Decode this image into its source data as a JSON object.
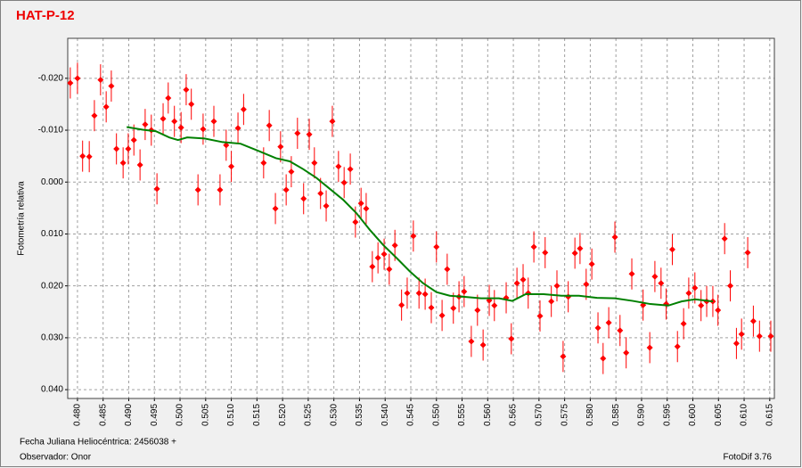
{
  "chart_data": {
    "type": "scatter",
    "title": "HAT-P-12",
    "ylabel": "Fotometría relativa",
    "xlabel": "Fecha Juliana Heliocéntrica: 2456038 +",
    "observer": "Observador: Onor",
    "software": "FotoDif 3.76",
    "xlim": [
      0.4781,
      0.6159
    ],
    "ylim": [
      0.0417,
      -0.0277
    ],
    "grid": true,
    "yticks": [
      {
        "value": -0.02,
        "label": "-0.020"
      },
      {
        "value": -0.01,
        "label": "-0.010"
      },
      {
        "value": 0,
        "label": "0.000"
      },
      {
        "value": 0.01,
        "label": "0.010"
      },
      {
        "value": 0.02,
        "label": "0.020"
      },
      {
        "value": 0.03,
        "label": "0.030"
      },
      {
        "value": 0.04,
        "label": "0.040"
      }
    ],
    "xticks": [
      {
        "value": 0.48,
        "label": "0.480"
      },
      {
        "value": 0.485,
        "label": "0.485"
      },
      {
        "value": 0.49,
        "label": "0.490"
      },
      {
        "value": 0.495,
        "label": "0.495"
      },
      {
        "value": 0.5,
        "label": "0.500"
      },
      {
        "value": 0.505,
        "label": "0.505"
      },
      {
        "value": 0.51,
        "label": "0.510"
      },
      {
        "value": 0.515,
        "label": "0.515"
      },
      {
        "value": 0.52,
        "label": "0.520"
      },
      {
        "value": 0.525,
        "label": "0.525"
      },
      {
        "value": 0.53,
        "label": "0.530"
      },
      {
        "value": 0.535,
        "label": "0.535"
      },
      {
        "value": 0.54,
        "label": "0.540"
      },
      {
        "value": 0.545,
        "label": "0.545"
      },
      {
        "value": 0.55,
        "label": "0.550"
      },
      {
        "value": 0.555,
        "label": "0.555"
      },
      {
        "value": 0.56,
        "label": "0.560"
      },
      {
        "value": 0.565,
        "label": "0.565"
      },
      {
        "value": 0.57,
        "label": "0.570"
      },
      {
        "value": 0.575,
        "label": "0.575"
      },
      {
        "value": 0.58,
        "label": "0.580"
      },
      {
        "value": 0.585,
        "label": "0.585"
      },
      {
        "value": 0.59,
        "label": "0.590"
      },
      {
        "value": 0.595,
        "label": "0.595"
      },
      {
        "value": 0.6,
        "label": "0.600"
      },
      {
        "value": 0.605,
        "label": "0.605"
      },
      {
        "value": 0.61,
        "label": "0.610"
      },
      {
        "value": 0.615,
        "label": "0.615"
      }
    ],
    "series": [
      {
        "type": "scatter",
        "color": "#ff0000",
        "yerr": 0.003,
        "x": [
          0.4786,
          0.48,
          0.481,
          0.4823,
          0.4833,
          0.4845,
          0.4856,
          0.4866,
          0.4876,
          0.4889,
          0.4899,
          0.491,
          0.4922,
          0.4932,
          0.4944,
          0.4955,
          0.4967,
          0.4977,
          0.4989,
          0.5002,
          0.5012,
          0.5022,
          0.5035,
          0.5045,
          0.5066,
          0.5078,
          0.509,
          0.51,
          0.5113,
          0.5124,
          0.5163,
          0.5174,
          0.5186,
          0.5196,
          0.5207,
          0.5217,
          0.5229,
          0.5241,
          0.5252,
          0.5262,
          0.5274,
          0.5285,
          0.5297,
          0.5309,
          0.532,
          0.5332,
          0.5342,
          0.5353,
          0.5363,
          0.5375,
          0.5386,
          0.5398,
          0.5408,
          0.5419,
          0.5432,
          0.5443,
          0.5455,
          0.5466,
          0.5478,
          0.549,
          0.55,
          0.5511,
          0.5521,
          0.5533,
          0.5544,
          0.5554,
          0.5568,
          0.558,
          0.5591,
          0.5603,
          0.5613,
          0.5636,
          0.5646,
          0.5657,
          0.5669,
          0.5679,
          0.569,
          0.5702,
          0.5712,
          0.5724,
          0.5735,
          0.5747,
          0.5757,
          0.577,
          0.578,
          0.5792,
          0.5803,
          0.5815,
          0.5825,
          0.5836,
          0.5848,
          0.5858,
          0.587,
          0.5881,
          0.5903,
          0.5916,
          0.5926,
          0.5938,
          0.5948,
          0.596,
          0.597,
          0.5982,
          0.5992,
          0.6004,
          0.6016,
          0.6027,
          0.6039,
          0.6049,
          0.6062,
          0.6073,
          0.6085,
          0.6095,
          0.6107,
          0.6118,
          0.613,
          0.6152
        ],
        "values": [
          -0.0191,
          -0.02,
          -0.005,
          -0.0049,
          -0.0128,
          -0.0197,
          -0.0145,
          -0.0185,
          -0.0064,
          -0.0037,
          -0.0064,
          -0.0081,
          -0.0033,
          -0.0111,
          -0.01,
          0.0013,
          -0.0122,
          -0.0162,
          -0.0117,
          -0.0105,
          -0.0178,
          -0.015,
          0.0015,
          -0.0102,
          -0.0117,
          0.0015,
          -0.0071,
          -0.003,
          -0.0104,
          -0.014,
          -0.0037,
          -0.0109,
          0.0051,
          -0.0068,
          0.0015,
          -0.002,
          -0.0094,
          0.0032,
          -0.0092,
          -0.0037,
          0.0022,
          0.0046,
          -0.0117,
          -0.003,
          0.0001,
          -0.0025,
          0.0077,
          0.0041,
          0.0051,
          0.0163,
          0.0146,
          0.0139,
          0.0168,
          0.0122,
          0.0237,
          0.0214,
          0.0104,
          0.0214,
          0.0216,
          0.0242,
          0.0125,
          0.0257,
          0.0168,
          0.0243,
          0.0221,
          0.0211,
          0.0307,
          0.0247,
          0.0314,
          0.0228,
          0.0238,
          0.0223,
          0.0302,
          0.0195,
          0.0188,
          0.0214,
          0.0125,
          0.0258,
          0.0136,
          0.023,
          0.02,
          0.0336,
          0.0221,
          0.0137,
          0.0128,
          0.0197,
          0.0158,
          0.0281,
          0.034,
          0.0271,
          0.0106,
          0.0286,
          0.0329,
          0.0177,
          0.0237,
          0.0319,
          0.0182,
          0.0195,
          0.0235,
          0.013,
          0.0317,
          0.0273,
          0.0214,
          0.0204,
          0.0238,
          0.023,
          0.023,
          0.0247,
          0.0109,
          0.02,
          0.0311,
          0.0293,
          0.0136,
          0.0268,
          0.0297,
          0.0297
        ]
      },
      {
        "type": "line",
        "color": "#008000",
        "x": [
          0.4896,
          0.4927,
          0.4953,
          0.4979,
          0.4996,
          0.5014,
          0.5048,
          0.5083,
          0.5118,
          0.5153,
          0.5187,
          0.5214,
          0.524,
          0.5266,
          0.5292,
          0.5318,
          0.5344,
          0.537,
          0.5396,
          0.5422,
          0.5448,
          0.5474,
          0.55,
          0.5526,
          0.5552,
          0.5587,
          0.5622,
          0.5648,
          0.5674,
          0.5709,
          0.5744,
          0.5778,
          0.5813,
          0.5848,
          0.5883,
          0.5917,
          0.5952,
          0.5978,
          0.6004,
          0.6039
        ],
        "values": [
          -0.0106,
          -0.0101,
          -0.0098,
          -0.0086,
          -0.0081,
          -0.0086,
          -0.0084,
          -0.0077,
          -0.0074,
          -0.006,
          -0.0046,
          -0.004,
          -0.0025,
          -0.0008,
          0.0013,
          0.0034,
          0.006,
          0.0092,
          0.0121,
          0.0146,
          0.0172,
          0.0195,
          0.0212,
          0.0219,
          0.0221,
          0.0224,
          0.0224,
          0.0229,
          0.0216,
          0.0216,
          0.0219,
          0.0219,
          0.0223,
          0.0224,
          0.0229,
          0.0235,
          0.0238,
          0.023,
          0.0226,
          0.023
        ]
      }
    ]
  }
}
